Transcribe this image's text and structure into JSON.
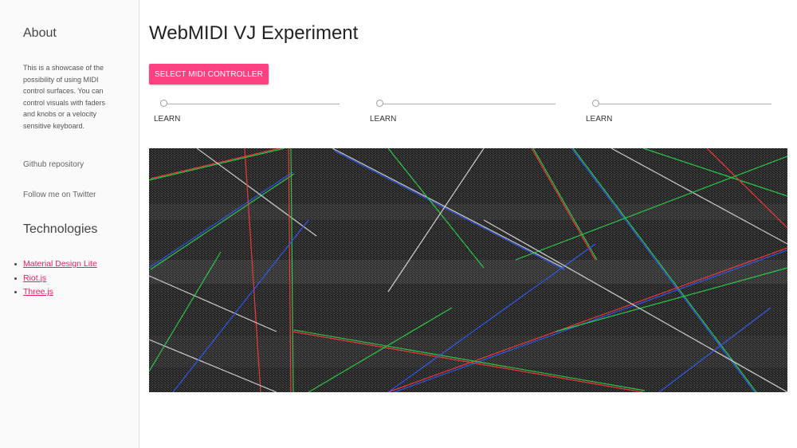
{
  "sidebar": {
    "about_title": "About",
    "about_text": "This is a showcase of the possibility of using MIDI control surfaces. You can control visuals with faders and knobs or a velocity sensitive keyboard.",
    "github_link": "Github repository",
    "twitter_link": "Follow me on Twitter",
    "technologies_title": "Technologies",
    "technologies": [
      {
        "label": "Material Design Lite"
      },
      {
        "label": "Riot.js"
      },
      {
        "label": "Three.js"
      }
    ]
  },
  "main": {
    "title": "WebMIDI VJ Experiment",
    "select_button": "SELECT MIDI CONTROLLER",
    "sliders": [
      {
        "value": 0,
        "learn_label": "LEARN"
      },
      {
        "value": 0,
        "learn_label": "LEARN"
      },
      {
        "value": 0,
        "learn_label": "LEARN"
      }
    ]
  },
  "colors": {
    "accent": "#ff4081",
    "link": "#e91e63",
    "sidebar_bg": "#fafafa",
    "visual_bg": "#1a1a1a"
  }
}
